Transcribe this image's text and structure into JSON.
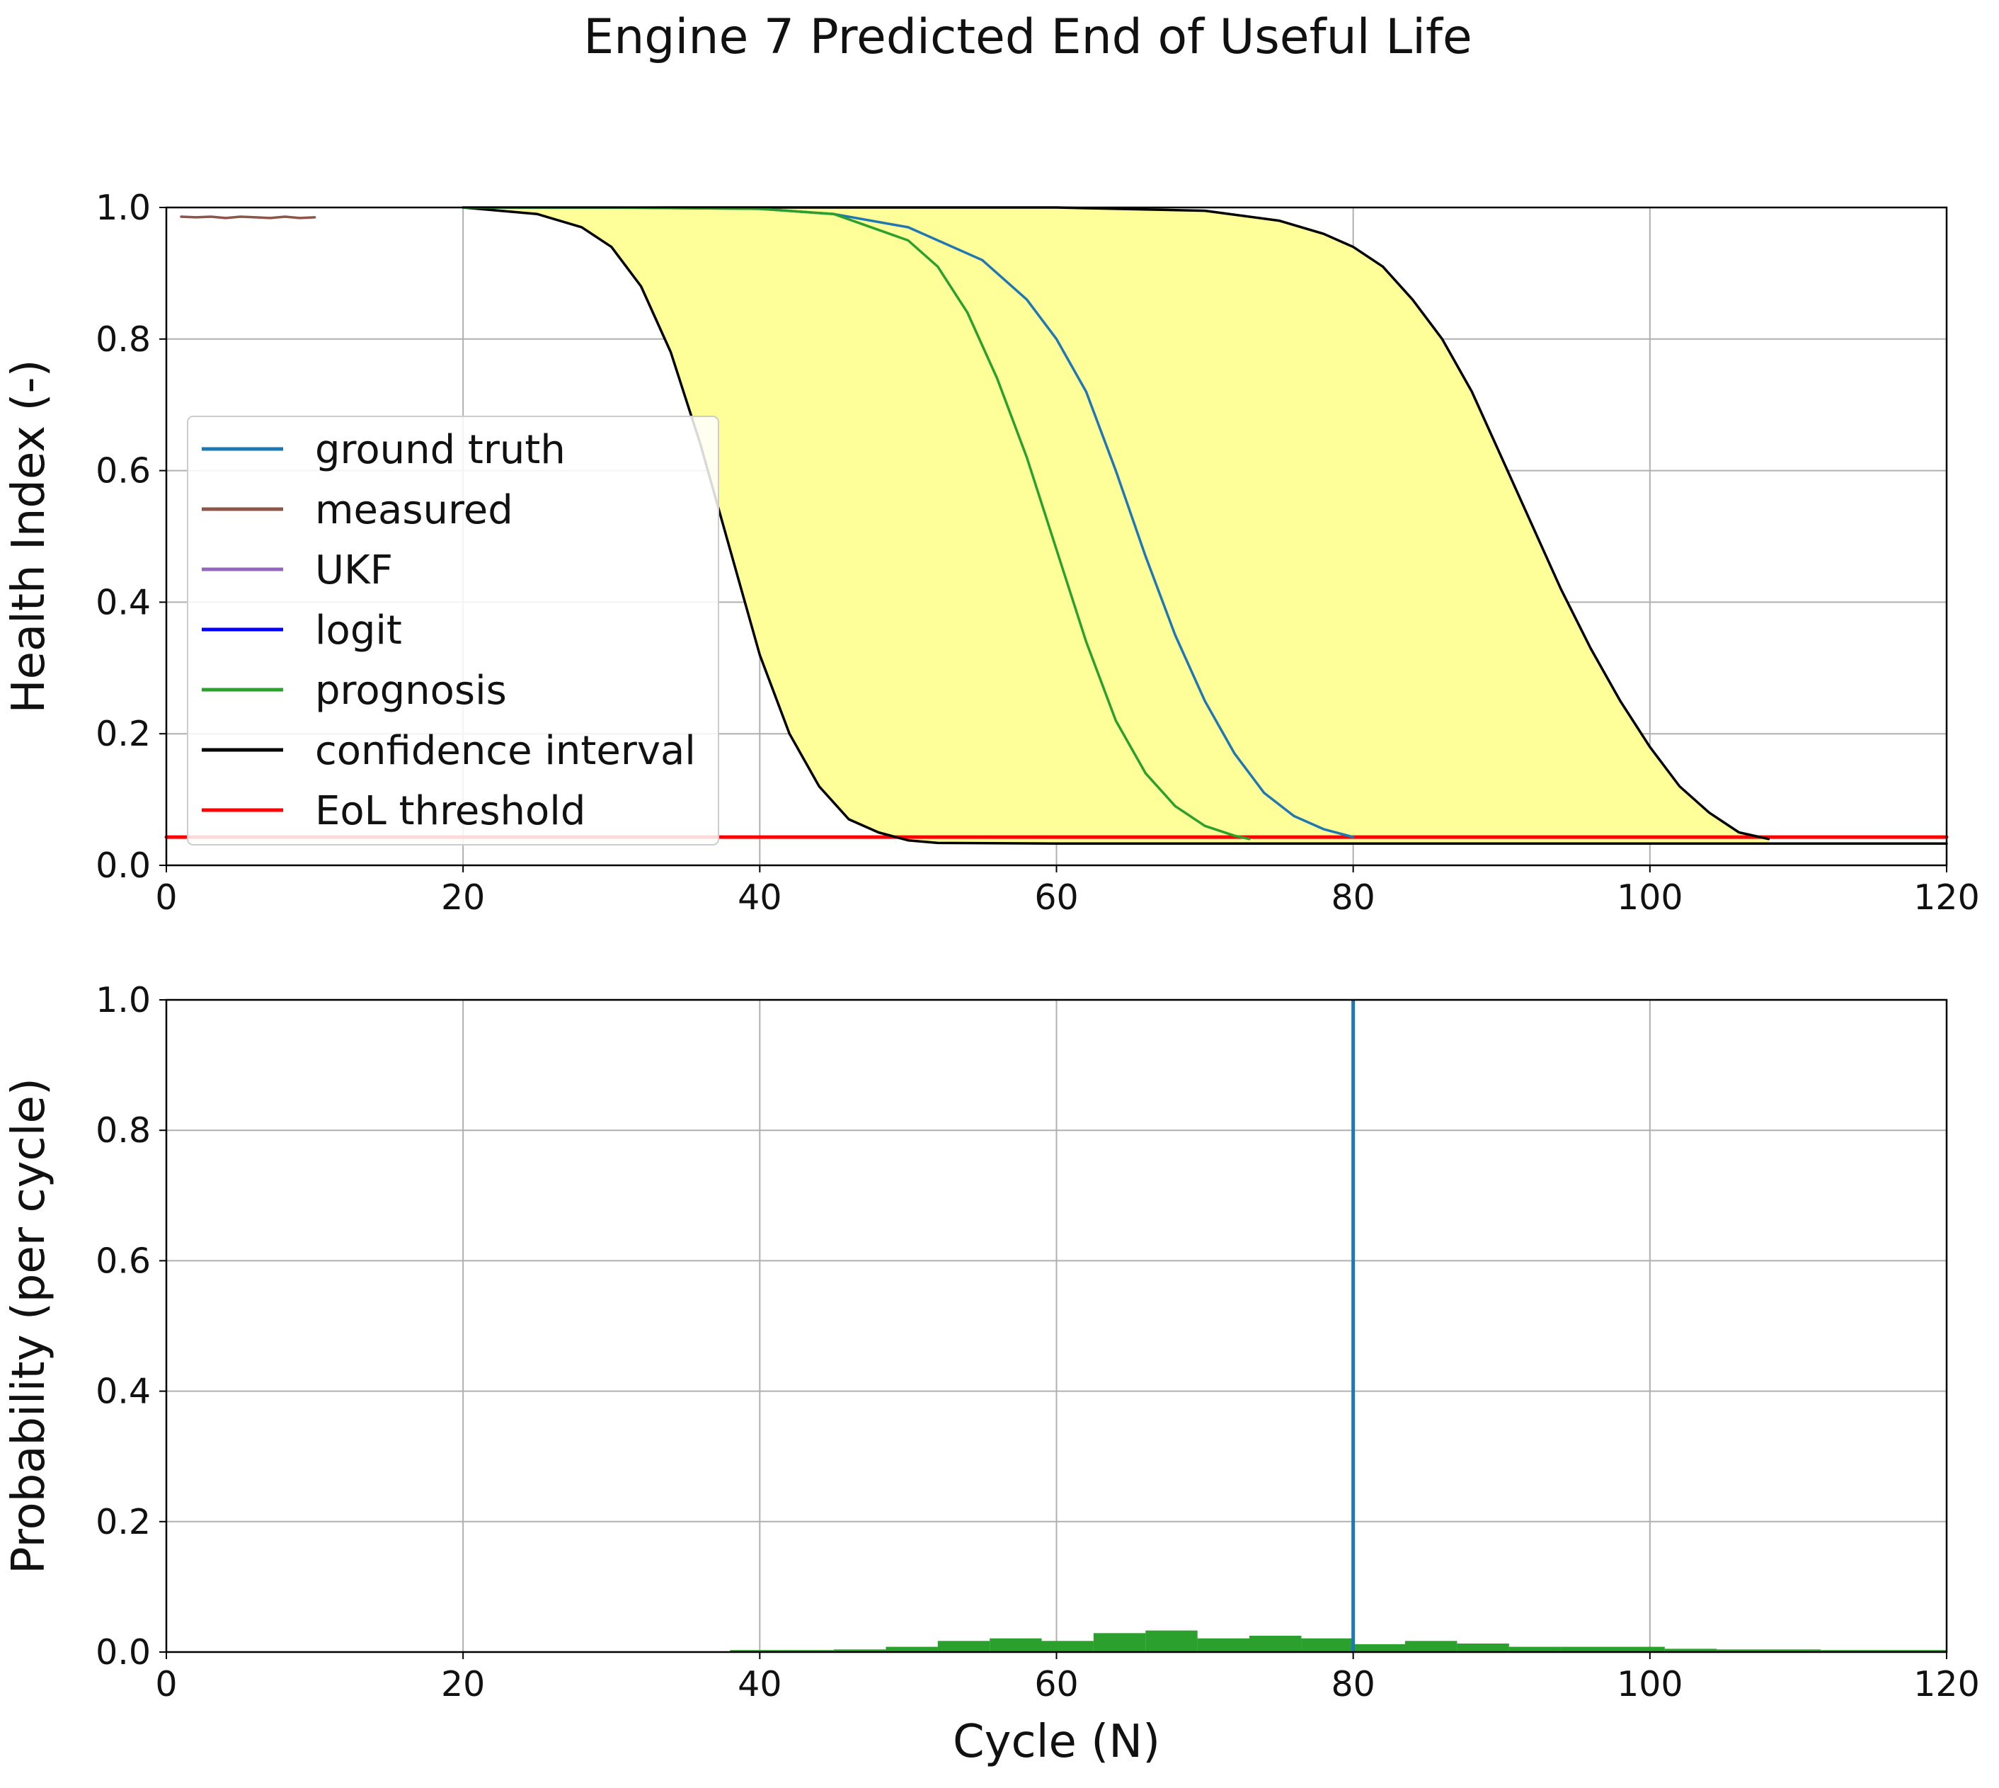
{
  "title": "Engine 7 Predicted End of Useful Life",
  "colors": {
    "ground_truth": "#1f77b4",
    "measured": "#8c564b",
    "ukf": "#9467bd",
    "logit": "#0000ff",
    "prognosis": "#2ca02c",
    "confidence": "#000000",
    "eol": "#ff0000",
    "fill": "#ffff99",
    "grid": "#b0b0b0"
  },
  "chart_data": [
    {
      "type": "line",
      "xlabel": "",
      "ylabel": "Health Index (-)",
      "xlim": [
        0,
        120
      ],
      "ylim": [
        0.0,
        1.0
      ],
      "xticks": [
        "0",
        "20",
        "40",
        "60",
        "80",
        "100",
        "120"
      ],
      "yticks": [
        "0.0",
        "0.2",
        "0.4",
        "0.6",
        "0.8",
        "1.0"
      ],
      "grid": true,
      "legend_position": "center-left",
      "legend": [
        {
          "label": "ground truth",
          "color": "#1f77b4"
        },
        {
          "label": "measured",
          "color": "#8c564b"
        },
        {
          "label": "UKF",
          "color": "#9467bd"
        },
        {
          "label": "logit",
          "color": "#0000ff"
        },
        {
          "label": "prognosis",
          "color": "#2ca02c"
        },
        {
          "label": "confidence interval",
          "color": "#000000"
        },
        {
          "label": "EoL threshold",
          "color": "#ff0000"
        }
      ],
      "series": [
        {
          "name": "measured",
          "color": "#8c564b",
          "x": [
            1,
            2,
            3,
            4,
            5,
            6,
            7,
            8,
            9,
            10
          ],
          "y": [
            0.986,
            0.985,
            0.986,
            0.984,
            0.986,
            0.985,
            0.984,
            0.986,
            0.984,
            0.985
          ]
        },
        {
          "name": "ground truth",
          "color": "#1f77b4",
          "x": [
            20,
            30,
            40,
            45,
            50,
            55,
            58,
            60,
            62,
            64,
            66,
            68,
            70,
            72,
            74,
            76,
            78,
            80
          ],
          "y": [
            1.0,
            1.0,
            0.998,
            0.99,
            0.97,
            0.92,
            0.86,
            0.8,
            0.72,
            0.6,
            0.47,
            0.35,
            0.25,
            0.17,
            0.11,
            0.075,
            0.055,
            0.043
          ]
        },
        {
          "name": "prognosis",
          "color": "#2ca02c",
          "x": [
            20,
            30,
            40,
            45,
            50,
            52,
            54,
            56,
            58,
            60,
            62,
            64,
            66,
            68,
            70,
            72,
            73
          ],
          "y": [
            1.0,
            1.0,
            0.998,
            0.99,
            0.95,
            0.91,
            0.84,
            0.74,
            0.62,
            0.48,
            0.34,
            0.22,
            0.14,
            0.09,
            0.06,
            0.045,
            0.04
          ]
        },
        {
          "name": "confidence interval lower",
          "color": "#000000",
          "x": [
            20,
            25,
            28,
            30,
            32,
            34,
            36,
            38,
            40,
            42,
            44,
            46,
            48,
            50,
            52,
            60,
            80,
            100,
            120
          ],
          "y": [
            1.0,
            0.99,
            0.97,
            0.94,
            0.88,
            0.78,
            0.64,
            0.48,
            0.32,
            0.2,
            0.12,
            0.07,
            0.05,
            0.038,
            0.034,
            0.033,
            0.033,
            0.033,
            0.033
          ]
        },
        {
          "name": "confidence interval upper",
          "color": "#000000",
          "x": [
            20,
            40,
            60,
            70,
            75,
            78,
            80,
            82,
            84,
            86,
            88,
            90,
            92,
            94,
            96,
            98,
            100,
            102,
            104,
            106,
            108
          ],
          "y": [
            1.0,
            1.0,
            1.0,
            0.995,
            0.98,
            0.96,
            0.94,
            0.91,
            0.86,
            0.8,
            0.72,
            0.62,
            0.52,
            0.42,
            0.33,
            0.25,
            0.18,
            0.12,
            0.08,
            0.05,
            0.04
          ]
        },
        {
          "name": "EoL threshold",
          "color": "#ff0000",
          "x": [
            0,
            120
          ],
          "y": [
            0.043,
            0.043
          ]
        }
      ],
      "fill_between": {
        "name": "confidence region",
        "color": "#ffff99",
        "lower": "confidence interval lower",
        "upper": "confidence interval upper"
      }
    },
    {
      "type": "bar",
      "xlabel": "Cycle (N)",
      "ylabel": "Probability (per cycle)",
      "xlim": [
        0,
        120
      ],
      "ylim": [
        0.0,
        1.0
      ],
      "xticks": [
        "0",
        "20",
        "40",
        "60",
        "80",
        "100",
        "120"
      ],
      "yticks": [
        "0.0",
        "0.2",
        "0.4",
        "0.6",
        "0.8",
        "1.0"
      ],
      "grid": true,
      "bin_edges": [
        38,
        41.5,
        45,
        48.5,
        52,
        55.5,
        59,
        62.5,
        66,
        69.5,
        73,
        76.5,
        80,
        83.5,
        87,
        90.5,
        94,
        97.5,
        101,
        104.5,
        108,
        111.5,
        115,
        120
      ],
      "values": [
        0.003,
        0.003,
        0.004,
        0.008,
        0.017,
        0.021,
        0.017,
        0.029,
        0.033,
        0.021,
        0.025,
        0.021,
        0.012,
        0.017,
        0.013,
        0.008,
        0.008,
        0.008,
        0.005,
        0.004,
        0.004,
        0.003,
        0.003
      ],
      "bar_color": "#2ca02c",
      "vline": {
        "name": "true end of life",
        "x": 80,
        "color": "#1f77b4"
      }
    }
  ]
}
